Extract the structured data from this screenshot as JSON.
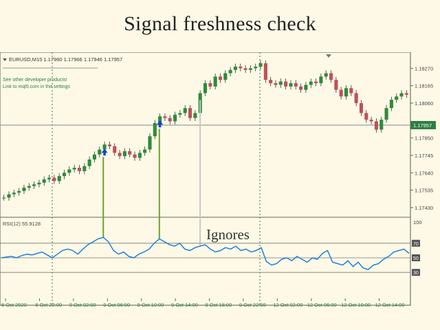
{
  "page": {
    "title": "Signal freshness check",
    "annotation": "Ignores"
  },
  "chart_header": {
    "symbol_line": "EURUSD,M15  1.17960 1.17966 1.17946 1.17957",
    "note_line1": "See other developer products!",
    "note_line2": "Link to mql5.com in the settings"
  },
  "colors": {
    "background": "#fdf9e6",
    "bull_candle": "#2e8b3c",
    "bear_candle": "#c0505a",
    "rsi_line": "#1e7fe0",
    "signal_arrow": "#1a3fd8",
    "signal_bar": "#6aa32a",
    "ignored_bar": "#c8c8c8",
    "price_tag": "#2e7d43"
  },
  "icons": {
    "signal": "up-arrow-icon",
    "menu": "triangle-down-icon"
  },
  "chart_data": [
    {
      "type": "candlestick",
      "symbol": "EURUSD",
      "timeframe": "M15",
      "last_price": 1.17957,
      "y_ticks": [
        "1.18270",
        "1.18165",
        "1.18060",
        "1.17850",
        "1.17745",
        "1.17640",
        "1.17535",
        "1.17430"
      ],
      "ylim": [
        1.1738,
        1.1835
      ],
      "current_price_label": "1.17957",
      "price_series": [
        1.1749,
        1.1751,
        1.1752,
        1.1753,
        1.1755,
        1.1756,
        1.1757,
        1.1758,
        1.176,
        1.1761,
        1.1759,
        1.1762,
        1.1764,
        1.1766,
        1.1767,
        1.1765,
        1.1768,
        1.1772,
        1.1775,
        1.1778,
        1.1781,
        1.178,
        1.1776,
        1.1774,
        1.1777,
        1.1775,
        1.1773,
        1.1776,
        1.1778,
        1.1786,
        1.1794,
        1.1798,
        1.1797,
        1.1795,
        1.1799,
        1.18,
        1.1803,
        1.1797,
        1.18,
        1.1812,
        1.1818,
        1.1816,
        1.1822,
        1.182,
        1.1824,
        1.1826,
        1.1828,
        1.1827,
        1.1826,
        1.1827,
        1.1828,
        1.183,
        1.182,
        1.1818,
        1.1817,
        1.1819,
        1.1816,
        1.1818,
        1.1816,
        1.1814,
        1.1817,
        1.1819,
        1.1818,
        1.1822,
        1.1824,
        1.182,
        1.1814,
        1.181,
        1.1815,
        1.1812,
        1.1806,
        1.18,
        1.1796,
        1.1795,
        1.179,
        1.1796,
        1.1803,
        1.1808,
        1.181,
        1.1812,
        1.1811
      ]
    },
    {
      "type": "line",
      "name": "RSI(12) 55.9128",
      "levels": [
        "70",
        "50",
        "30"
      ],
      "top_label": "100",
      "ylim": [
        0,
        100
      ],
      "values": [
        50,
        51,
        52,
        50,
        53,
        55,
        54,
        56,
        58,
        54,
        50,
        55,
        60,
        62,
        60,
        55,
        62,
        68,
        72,
        76,
        78,
        72,
        60,
        55,
        58,
        52,
        50,
        55,
        58,
        62,
        70,
        76,
        72,
        68,
        66,
        70,
        62,
        60,
        64,
        66,
        68,
        62,
        58,
        60,
        64,
        62,
        66,
        60,
        62,
        58,
        60,
        64,
        45,
        40,
        42,
        48,
        50,
        46,
        52,
        48,
        44,
        50,
        48,
        56,
        60,
        44,
        42,
        40,
        46,
        38,
        44,
        36,
        34,
        40,
        42,
        48,
        52,
        58,
        60,
        62,
        56
      ]
    },
    {
      "type": "time_axis",
      "labels": [
        "8 Oct 2020",
        "8 Oct 22:00",
        "9 Oct 02:00",
        "9 Oct 06:00",
        "9 Oct 10:00",
        "9 Oct 14:00",
        "9 Oct 18:00",
        "9 Oct 22:00",
        "12 Oct 02:00",
        "12 Oct 06:00",
        "12 Oct 10:00",
        "12 Oct 14:00"
      ]
    }
  ]
}
